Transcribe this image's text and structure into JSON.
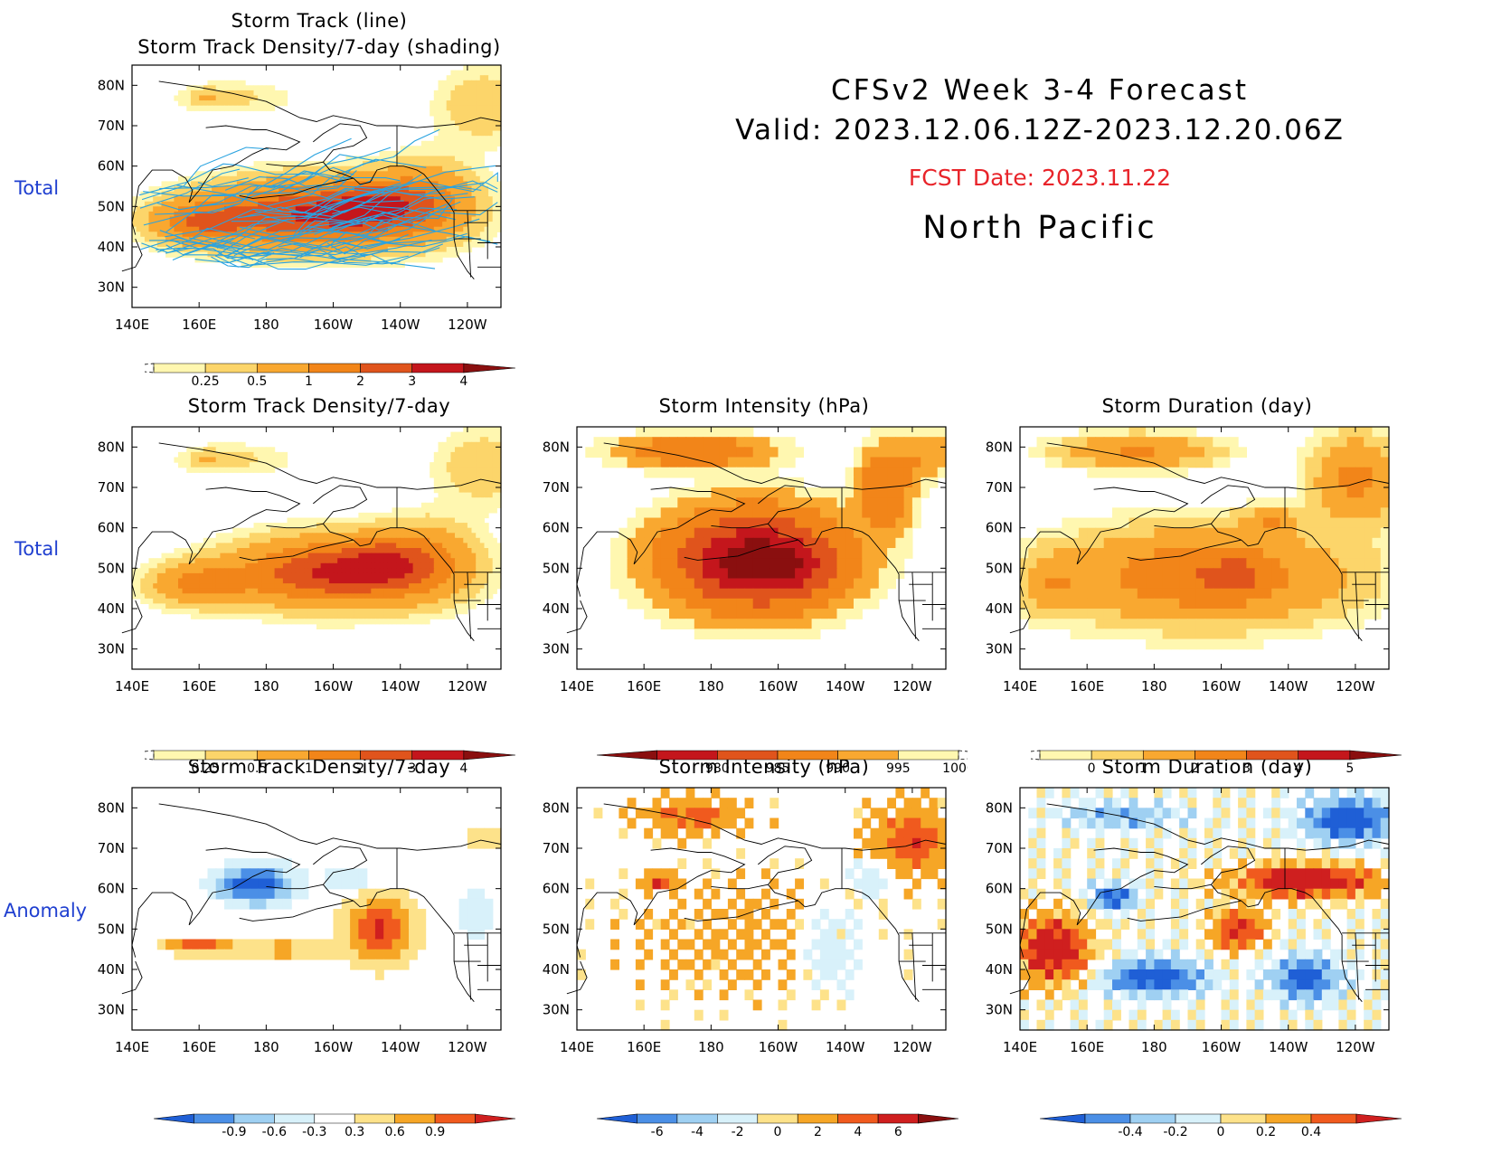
{
  "header": {
    "title_line1": "CFSv2  Week  3-4  Forecast",
    "title_line2": "Valid:  2023.12.06.12Z-2023.12.20.06Z",
    "fcst_date": "FCST Date: 2023.11.22",
    "region": "North  Pacific"
  },
  "row_labels": [
    "Total",
    "Total",
    "Anomaly"
  ],
  "colors": {
    "row_label": "#1f3fd0",
    "fcst_date": "#e8242a",
    "storm_track_line": "#2aa3e0",
    "coastline": "#000000"
  },
  "map_axes": {
    "lon_ticks": [
      "140E",
      "160E",
      "180",
      "160W",
      "140W",
      "120W"
    ],
    "lat_ticks": [
      "80N",
      "70N",
      "60N",
      "50N",
      "40N",
      "30N"
    ],
    "lon_range": [
      140,
      250
    ],
    "lat_range": [
      25,
      85
    ]
  },
  "chart_data": [
    {
      "type": "heatmap",
      "id": "p0",
      "title_lines": [
        "Storm  Track  (line)",
        "Storm  Track  Density/7-day  (shading)"
      ],
      "overlay": "storm-track-lines",
      "colorbar": {
        "labels": [
          "0.25",
          "0.5",
          "1",
          "2",
          "3",
          "4"
        ],
        "colors": [
          "#fff7b0",
          "#fcd56a",
          "#f9a830",
          "#f28519",
          "#e0541c",
          "#c4161c",
          "#8a0f0f"
        ],
        "under": "dashed"
      },
      "blobs": [
        {
          "lon": 195,
          "lat": 48,
          "a": 4.2,
          "sx": 32,
          "sy": 8
        },
        {
          "lon": 212,
          "lat": 51,
          "a": 1.5,
          "sx": 12,
          "sy": 6
        },
        {
          "lon": 160,
          "lat": 46,
          "a": 2.2,
          "sx": 14,
          "sy": 5
        },
        {
          "lon": 228,
          "lat": 52,
          "a": 1.8,
          "sx": 14,
          "sy": 9
        },
        {
          "lon": 245,
          "lat": 75,
          "a": 0.9,
          "sx": 14,
          "sy": 9
        },
        {
          "lon": 170,
          "lat": 77,
          "a": 0.6,
          "sx": 18,
          "sy": 4
        },
        {
          "lon": 162,
          "lat": 77,
          "a": 0.7,
          "sx": 4,
          "sy": 2
        }
      ]
    },
    {
      "type": "heatmap",
      "id": "p1",
      "title": "Storm  Track  Density/7-day",
      "colorbar": {
        "labels": [
          "0.25",
          "0.5",
          "1",
          "2",
          "3",
          "4"
        ],
        "colors": [
          "#fff7b0",
          "#fcd56a",
          "#f9a830",
          "#f28519",
          "#e0541c",
          "#c4161c",
          "#8a0f0f"
        ],
        "under": "dashed"
      },
      "blobs": [
        {
          "lon": 200,
          "lat": 49,
          "a": 4.2,
          "sx": 28,
          "sy": 8
        },
        {
          "lon": 214,
          "lat": 52,
          "a": 1.2,
          "sx": 10,
          "sy": 6
        },
        {
          "lon": 160,
          "lat": 46,
          "a": 2.2,
          "sx": 14,
          "sy": 5
        },
        {
          "lon": 228,
          "lat": 52,
          "a": 1.8,
          "sx": 14,
          "sy": 9
        },
        {
          "lon": 245,
          "lat": 75,
          "a": 0.9,
          "sx": 14,
          "sy": 9
        },
        {
          "lon": 170,
          "lat": 77,
          "a": 0.6,
          "sx": 18,
          "sy": 4
        },
        {
          "lon": 162,
          "lat": 77,
          "a": 0.7,
          "sx": 4,
          "sy": 2
        }
      ]
    },
    {
      "type": "heatmap",
      "id": "p2",
      "title": "Storm  Intensity  (hPa)",
      "colorbar": {
        "labels": [
          "980",
          "985",
          "990",
          "995",
          "1000"
        ],
        "colors": [
          "#8a0f0f",
          "#c4161c",
          "#e0541c",
          "#f28519",
          "#f9a830",
          "#fff7b0"
        ],
        "over": "dashed",
        "reverse": true
      },
      "blocky": true,
      "blobs": [
        {
          "lon": 193,
          "lat": 52,
          "a": 4.3,
          "sx": 26,
          "sy": 12
        },
        {
          "lon": 200,
          "lat": 50,
          "a": 1.0,
          "sx": 14,
          "sy": 6
        },
        {
          "lon": 175,
          "lat": 79,
          "a": 1.9,
          "sx": 22,
          "sy": 4
        },
        {
          "lon": 232,
          "lat": 70,
          "a": 1.9,
          "sx": 8,
          "sy": 10
        },
        {
          "lon": 245,
          "lat": 78,
          "a": 0.9,
          "sx": 8,
          "sy": 6
        }
      ]
    },
    {
      "type": "heatmap",
      "id": "p3",
      "title": "Storm  Duration  (day)",
      "colorbar": {
        "labels": [
          "0",
          "1",
          "2",
          "3",
          "4",
          "5"
        ],
        "colors": [
          "#fff7b0",
          "#fcd56a",
          "#f9a830",
          "#f28519",
          "#e0541c",
          "#c4161c",
          "#8a0f0f"
        ],
        "under": "dashed"
      },
      "blocky": true,
      "blobs": [
        {
          "lon": 195,
          "lat": 48,
          "a": 3.0,
          "sx": 40,
          "sy": 11
        },
        {
          "lon": 150,
          "lat": 46,
          "a": 1.3,
          "sx": 8,
          "sy": 7
        },
        {
          "lon": 215,
          "lat": 62,
          "a": 1.6,
          "sx": 8,
          "sy": 3
        },
        {
          "lon": 205,
          "lat": 48,
          "a": 0.9,
          "sx": 6,
          "sy": 5
        },
        {
          "lon": 175,
          "lat": 79,
          "a": 2.1,
          "sx": 22,
          "sy": 4
        },
        {
          "lon": 240,
          "lat": 72,
          "a": 2.4,
          "sx": 12,
          "sy": 10
        }
      ]
    },
    {
      "type": "heatmap",
      "id": "p4",
      "title": "Storm  Track  Density/7-day",
      "colorbar": {
        "labels": [
          "-0.9",
          "-0.6",
          "-0.3",
          "0.3",
          "0.6",
          "0.9"
        ],
        "colors": [
          "#1f5fd6",
          "#4b8fe6",
          "#9fd0f2",
          "#d8f1fa",
          "#ffffff",
          "#fde28a",
          "#f6a626",
          "#f05a1e",
          "#cf1f1f"
        ],
        "diverging": true
      },
      "blocky": true,
      "anomaly": true,
      "blobs": [
        {
          "lon": 178,
          "lat": 61,
          "a": -1.1,
          "sx": 10,
          "sy": 5
        },
        {
          "lon": 170,
          "lat": 61,
          "a": -0.5,
          "sx": 8,
          "sy": 3
        },
        {
          "lon": 205,
          "lat": 62,
          "a": -0.4,
          "sx": 8,
          "sy": 3
        },
        {
          "lon": 214,
          "lat": 50,
          "a": 1.1,
          "sx": 10,
          "sy": 8
        },
        {
          "lon": 160,
          "lat": 46,
          "a": 1.0,
          "sx": 10,
          "sy": 2
        },
        {
          "lon": 185,
          "lat": 45,
          "a": 0.7,
          "sx": 12,
          "sy": 2
        },
        {
          "lon": 243,
          "lat": 54,
          "a": -0.4,
          "sx": 5,
          "sy": 6
        },
        {
          "lon": 245,
          "lat": 73,
          "a": 0.35,
          "sx": 6,
          "sy": 3
        }
      ]
    },
    {
      "type": "heatmap",
      "id": "p5",
      "title": "Storm  Intensity  (hPa)",
      "colorbar": {
        "labels": [
          "-6",
          "-4",
          "-2",
          "0",
          "2",
          "4",
          "6"
        ],
        "colors": [
          "#1f5fd6",
          "#4b8fe6",
          "#9fd0f2",
          "#d8f1fa",
          "#fde28a",
          "#f6a626",
          "#f05a1e",
          "#cf1f1f",
          "#8a0f0f"
        ],
        "diverging": true
      },
      "blocky": true,
      "anomaly": true,
      "noise": true,
      "blobs": [
        {
          "lon": 190,
          "lat": 48,
          "a": 1.1,
          "sx": 30,
          "sy": 12
        },
        {
          "lon": 215,
          "lat": 45,
          "a": -2.2,
          "sx": 9,
          "sy": 9
        },
        {
          "lon": 165,
          "lat": 62,
          "a": 4.5,
          "sx": 5,
          "sy": 2
        },
        {
          "lon": 175,
          "lat": 78,
          "a": 3.2,
          "sx": 14,
          "sy": 4
        },
        {
          "lon": 240,
          "lat": 72,
          "a": 4.0,
          "sx": 10,
          "sy": 8
        },
        {
          "lon": 228,
          "lat": 62,
          "a": -1.8,
          "sx": 6,
          "sy": 4
        }
      ]
    },
    {
      "type": "heatmap",
      "id": "p6",
      "title": "Storm  Duration  (day)",
      "colorbar": {
        "labels": [
          "-0.4",
          "-0.2",
          "0",
          "0.2",
          "0.4"
        ],
        "colors": [
          "#1f5fd6",
          "#4b8fe6",
          "#9fd0f2",
          "#d8f1fa",
          "#fde28a",
          "#f6a626",
          "#f05a1e",
          "#cf1f1f"
        ],
        "diverging": true
      },
      "blocky": true,
      "anomaly": true,
      "noise": true,
      "blobs": [
        {
          "lon": 150,
          "lat": 45,
          "a": 0.55,
          "sx": 10,
          "sy": 8
        },
        {
          "lon": 205,
          "lat": 50,
          "a": 0.45,
          "sx": 7,
          "sy": 5
        },
        {
          "lon": 225,
          "lat": 62,
          "a": 0.55,
          "sx": 20,
          "sy": 4
        },
        {
          "lon": 180,
          "lat": 38,
          "a": -0.5,
          "sx": 14,
          "sy": 4
        },
        {
          "lon": 225,
          "lat": 38,
          "a": -0.45,
          "sx": 9,
          "sy": 5
        },
        {
          "lon": 238,
          "lat": 77,
          "a": -0.55,
          "sx": 12,
          "sy": 5
        },
        {
          "lon": 168,
          "lat": 58,
          "a": -0.45,
          "sx": 6,
          "sy": 3
        },
        {
          "lon": 170,
          "lat": 78,
          "a": -0.25,
          "sx": 16,
          "sy": 3
        }
      ]
    }
  ]
}
